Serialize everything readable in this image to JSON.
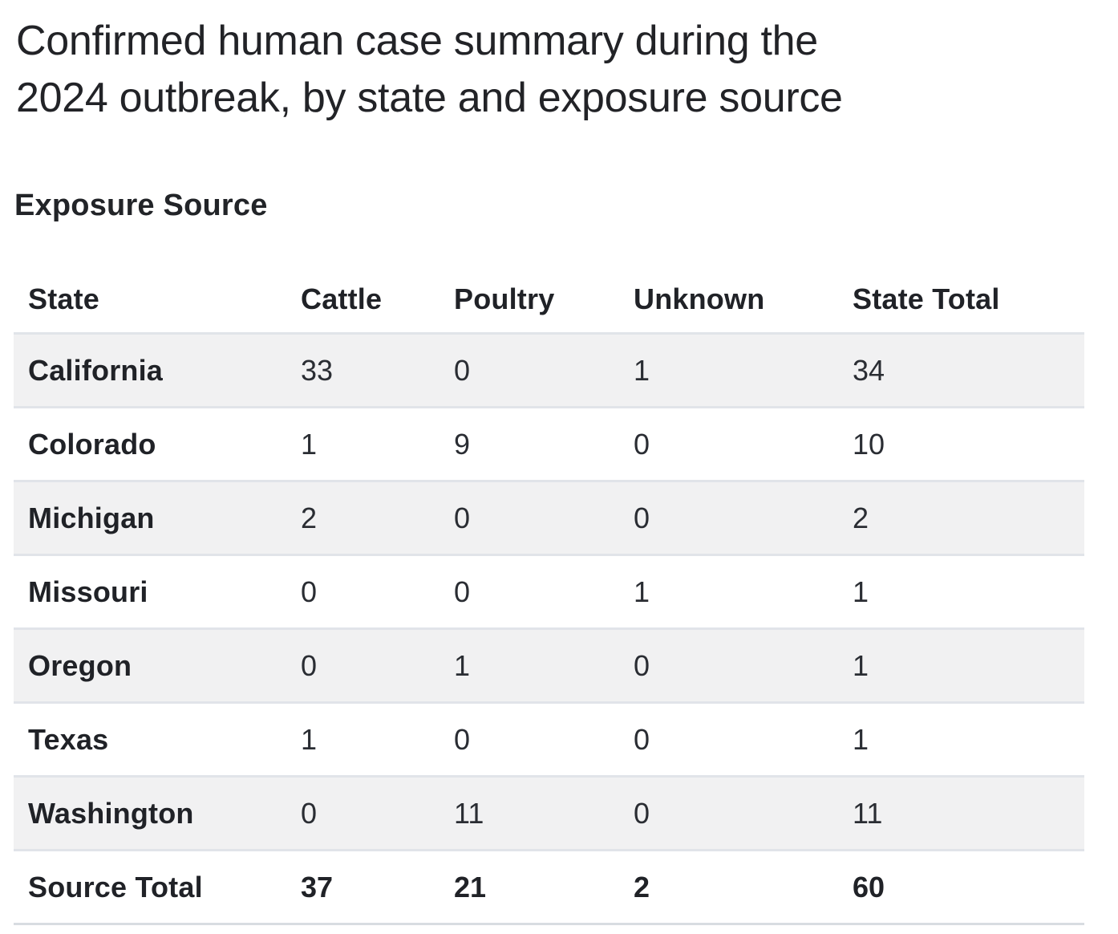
{
  "page": {
    "title": "Confirmed human case summary during the 2024 outbreak, by state and exposure source",
    "section_heading": "Exposure Source"
  },
  "chart_data": {
    "type": "table",
    "title": "Confirmed human case summary during the 2024 outbreak, by state and exposure source",
    "section": "Exposure Source",
    "columns": [
      "State",
      "Cattle",
      "Poultry",
      "Unknown",
      "State Total"
    ],
    "rows": [
      {
        "state": "California",
        "cattle": 33,
        "poultry": 0,
        "unknown": 1,
        "total": 34
      },
      {
        "state": "Colorado",
        "cattle": 1,
        "poultry": 9,
        "unknown": 0,
        "total": 10
      },
      {
        "state": "Michigan",
        "cattle": 2,
        "poultry": 0,
        "unknown": 0,
        "total": 2
      },
      {
        "state": "Missouri",
        "cattle": 0,
        "poultry": 0,
        "unknown": 1,
        "total": 1
      },
      {
        "state": "Oregon",
        "cattle": 0,
        "poultry": 1,
        "unknown": 0,
        "total": 1
      },
      {
        "state": "Texas",
        "cattle": 1,
        "poultry": 0,
        "unknown": 0,
        "total": 1
      },
      {
        "state": "Washington",
        "cattle": 0,
        "poultry": 11,
        "unknown": 0,
        "total": 11
      }
    ],
    "totals": {
      "label": "Source Total",
      "cattle": 37,
      "poultry": 21,
      "unknown": 2,
      "total": 60
    },
    "layout": {
      "striped": true,
      "alt_row_color": "#f1f1f2",
      "border_color": "#e1e4e9",
      "bottom_border_color": "#d8dce1",
      "header_text_color": "#202227",
      "value_text_color": "#2a2d33"
    }
  }
}
